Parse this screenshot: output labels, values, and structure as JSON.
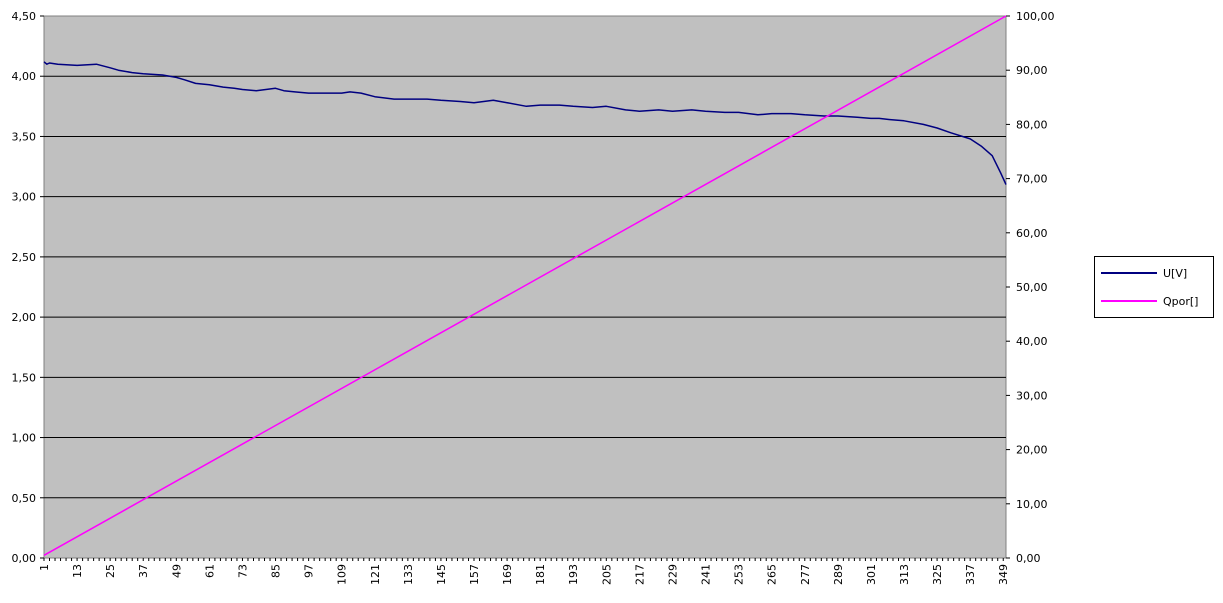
{
  "chart_data": {
    "type": "line",
    "title": "",
    "xlabel": "",
    "ylabel": "",
    "y2label": "",
    "x_range": [
      1,
      350
    ],
    "x_tick_labels": [
      "1",
      "13",
      "25",
      "37",
      "49",
      "61",
      "73",
      "85",
      "97",
      "109",
      "121",
      "133",
      "145",
      "157",
      "169",
      "181",
      "193",
      "205",
      "217",
      "229",
      "241",
      "253",
      "265",
      "277",
      "289",
      "301",
      "313",
      "325",
      "337",
      "349"
    ],
    "ylim": [
      0,
      4.5
    ],
    "y_tick_labels": [
      "0,00",
      "0,50",
      "1,00",
      "1,50",
      "2,00",
      "2,50",
      "3,00",
      "3,50",
      "4,00",
      "4,50"
    ],
    "y2lim": [
      0,
      100
    ],
    "y2_tick_labels": [
      "0,00",
      "10,00",
      "20,00",
      "30,00",
      "40,00",
      "50,00",
      "60,00",
      "70,00",
      "80,00",
      "90,00",
      "100,00"
    ],
    "grid": true,
    "legend_position": "right",
    "plot_background": "#c0c0c0",
    "series": [
      {
        "name": "U[V]",
        "axis": "left",
        "color": "#000080",
        "x": [
          1,
          2,
          3,
          6,
          13,
          20,
          25,
          28,
          33,
          37,
          44,
          49,
          52,
          56,
          61,
          66,
          70,
          73,
          78,
          85,
          88,
          92,
          97,
          104,
          109,
          112,
          116,
          121,
          128,
          133,
          140,
          145,
          152,
          157,
          164,
          169,
          176,
          181,
          188,
          193,
          200,
          205,
          212,
          217,
          224,
          229,
          236,
          241,
          248,
          253,
          260,
          265,
          272,
          277,
          284,
          289,
          296,
          301,
          304,
          308,
          313,
          320,
          325,
          330,
          337,
          341,
          345,
          348,
          350
        ],
        "values": [
          4.12,
          4.1,
          4.11,
          4.1,
          4.09,
          4.1,
          4.07,
          4.05,
          4.03,
          4.02,
          4.01,
          3.99,
          3.97,
          3.94,
          3.93,
          3.91,
          3.9,
          3.89,
          3.88,
          3.9,
          3.88,
          3.87,
          3.86,
          3.86,
          3.86,
          3.87,
          3.86,
          3.83,
          3.81,
          3.81,
          3.81,
          3.8,
          3.79,
          3.78,
          3.8,
          3.78,
          3.75,
          3.76,
          3.76,
          3.75,
          3.74,
          3.75,
          3.72,
          3.71,
          3.72,
          3.71,
          3.72,
          3.71,
          3.7,
          3.7,
          3.68,
          3.69,
          3.69,
          3.68,
          3.67,
          3.67,
          3.66,
          3.65,
          3.65,
          3.64,
          3.63,
          3.6,
          3.57,
          3.53,
          3.48,
          3.42,
          3.34,
          3.2,
          3.1
        ]
      },
      {
        "name": "Qpor[]",
        "axis": "right",
        "color": "#ff00ff",
        "x": [
          1,
          350
        ],
        "values": [
          0.5,
          100
        ]
      }
    ]
  }
}
